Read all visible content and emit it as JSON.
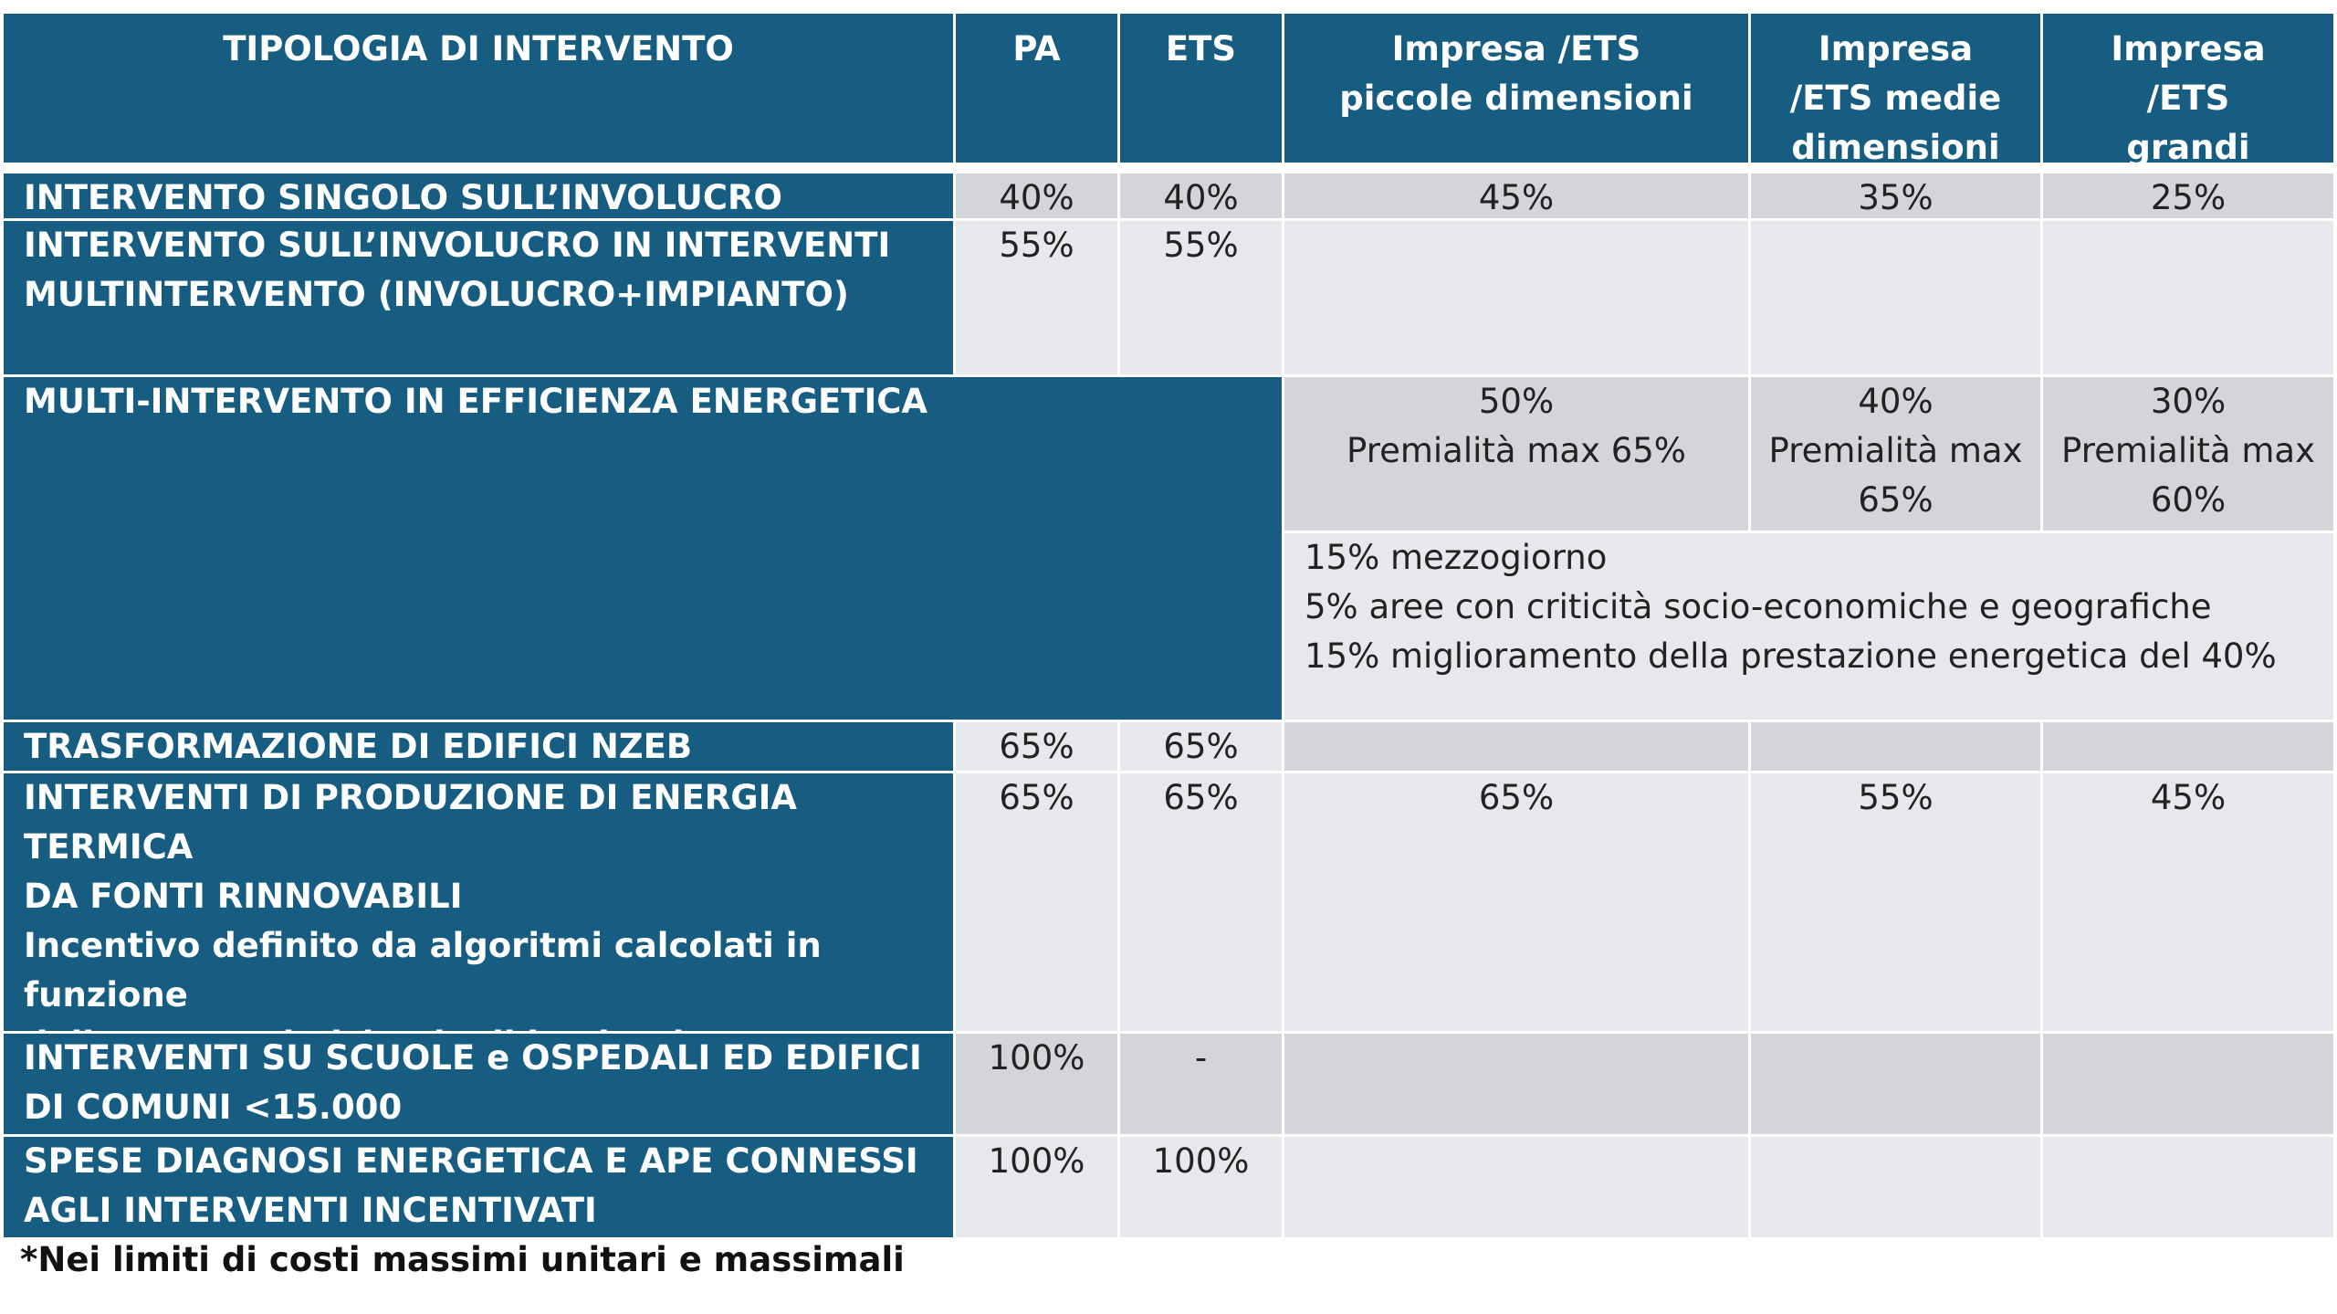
{
  "headers": {
    "tipologia": "TIPOLOGIA DI INTERVENTO",
    "pa": "PA",
    "ets": "ETS",
    "piccole": "Impresa /ETS piccole dimensioni",
    "medie": "Impresa /ETS medie dimensioni",
    "grandi": "Impresa /ETS grandi dimensioni"
  },
  "rows": [
    {
      "label": "INTERVENTO SINGOLO SULL’INVOLUCRO",
      "pa": "40%",
      "ets": "40%",
      "piccole": "45%",
      "medie": "35%",
      "grandi": "25%"
    },
    {
      "label": "INTERVENTO SULL’INVOLUCRO IN INTERVENTI MULTINTERVENTO (INVOLUCRO+IMPIANTO)",
      "pa": "55%",
      "ets": "55%"
    },
    {
      "label": "MULTI-INTERVENTO IN EFFICIENZA ENERGETICA",
      "piccole": [
        "50%",
        "Premialità max 65%"
      ],
      "medie": [
        "40%",
        "Premialità max",
        "65%"
      ],
      "grandi": [
        "30%",
        "Premialità max",
        "60%"
      ],
      "notes": [
        "15% mezzogiorno",
        "5% aree con criticità socio-economiche e geografiche",
        "15% miglioramento della prestazione energetica del 40%"
      ]
    },
    {
      "label": "TRASFORMAZIONE DI EDIFICI NZEB",
      "pa": "65%",
      "ets": "65%"
    },
    {
      "label_lines": [
        "INTERVENTI DI PRODUZIONE DI ENERGIA TERMICA",
        "DA FONTI RINNOVABILI",
        "Incentivo definito da algoritmi calcolati in funzione",
        "delle caratteristiche degli impianti"
      ],
      "pa": "65%",
      "ets": "65%",
      "piccole": "65%",
      "medie": "55%",
      "grandi": "45%"
    },
    {
      "label": "INTERVENTI SU SCUOLE e OSPEDALI ED EDIFICI DI COMUNI <15.000",
      "pa": "100%",
      "ets": "-"
    },
    {
      "label": "SPESE DIAGNOSI ENERGETICA E APE CONNESSI AGLI INTERVENTI INCENTIVATI",
      "pa": "100%",
      "ets": "100%"
    }
  ],
  "footnote": "*Nei limiti di costi massimi unitari e massimali",
  "colors": {
    "header": "#175d82",
    "cell_dark": "#d3d5d9",
    "cell_light": "#e6e8eb"
  }
}
